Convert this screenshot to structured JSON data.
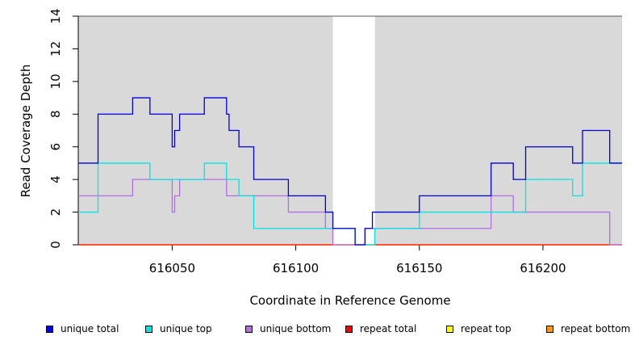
{
  "chart_data": {
    "type": "line",
    "step": true,
    "xlabel": "Coordinate in Reference Genome",
    "ylabel": "Read Coverage Depth",
    "xlim": [
      616012,
      616232
    ],
    "ylim": [
      0,
      14
    ],
    "x_ticks": [
      616050,
      616100,
      616150,
      616200
    ],
    "y_ticks": [
      0,
      2,
      4,
      6,
      8,
      10,
      12,
      14
    ],
    "shaded_regions": [
      [
        616012,
        616115
      ],
      [
        616132,
        616232
      ]
    ],
    "legend_position": "bottom",
    "series": [
      {
        "name": "unique total",
        "color": "#0000dd",
        "steps": [
          [
            616012,
            5
          ],
          [
            616020,
            8
          ],
          [
            616034,
            9
          ],
          [
            616041,
            8
          ],
          [
            616050,
            6
          ],
          [
            616051,
            7
          ],
          [
            616053,
            8
          ],
          [
            616063,
            9
          ],
          [
            616072,
            8
          ],
          [
            616073,
            7
          ],
          [
            616077,
            6
          ],
          [
            616083,
            4
          ],
          [
            616097,
            3
          ],
          [
            616112,
            2
          ],
          [
            616115,
            1
          ],
          [
            616124,
            0
          ],
          [
            616128,
            1
          ],
          [
            616131,
            2
          ],
          [
            616150,
            3
          ],
          [
            616179,
            5
          ],
          [
            616188,
            4
          ],
          [
            616193,
            6
          ],
          [
            616212,
            5
          ],
          [
            616216,
            7
          ],
          [
            616227,
            5
          ],
          [
            616232,
            5
          ]
        ]
      },
      {
        "name": "unique top",
        "color": "#00e5e5",
        "steps": [
          [
            616012,
            2
          ],
          [
            616020,
            5
          ],
          [
            616041,
            4
          ],
          [
            616063,
            5
          ],
          [
            616072,
            4
          ],
          [
            616077,
            3
          ],
          [
            616083,
            1
          ],
          [
            616124,
            0
          ],
          [
            616132,
            1
          ],
          [
            616150,
            2
          ],
          [
            616193,
            4
          ],
          [
            616212,
            3
          ],
          [
            616216,
            5
          ],
          [
            616232,
            5
          ]
        ]
      },
      {
        "name": "unique bottom",
        "color": "#b36be8",
        "steps": [
          [
            616012,
            3
          ],
          [
            616034,
            4
          ],
          [
            616050,
            2
          ],
          [
            616051,
            3
          ],
          [
            616053,
            4
          ],
          [
            616072,
            3
          ],
          [
            616097,
            2
          ],
          [
            616112,
            1
          ],
          [
            616115,
            0
          ],
          [
            616128,
            1
          ],
          [
            616179,
            3
          ],
          [
            616188,
            2
          ],
          [
            616227,
            0
          ],
          [
            616232,
            0
          ]
        ]
      },
      {
        "name": "repeat total",
        "color": "#ff0000",
        "steps": [
          [
            616012,
            0
          ],
          [
            616232,
            0
          ]
        ]
      },
      {
        "name": "repeat top",
        "color": "#ffff00",
        "steps": [
          [
            616012,
            0
          ],
          [
            616232,
            0
          ]
        ]
      },
      {
        "name": "repeat bottom",
        "color": "#ff9900",
        "steps": [
          [
            616012,
            0
          ],
          [
            616232,
            0
          ]
        ]
      }
    ]
  }
}
